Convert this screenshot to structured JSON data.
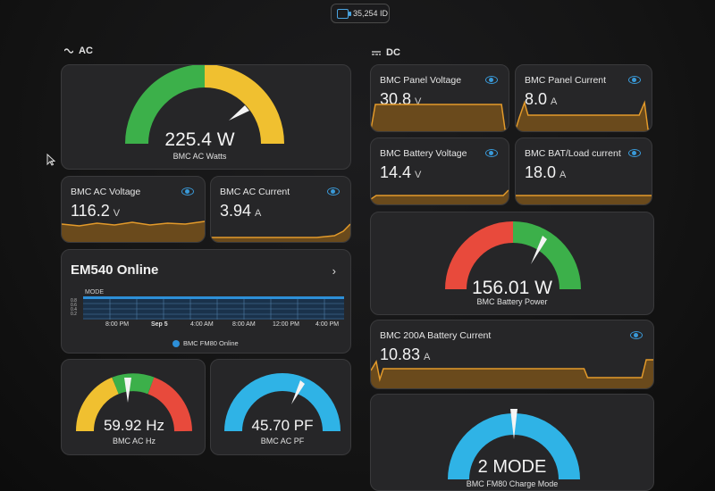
{
  "top_badge": {
    "icon": "battery-icon",
    "text": "35,254 ID"
  },
  "sections": {
    "ac": {
      "title": "AC",
      "icon": "sine-wave-icon"
    },
    "dc": {
      "title": "DC",
      "icon": "dc-icon"
    }
  },
  "colors": {
    "green": "#3cb04a",
    "yellow": "#f0c030",
    "red": "#e84a3c",
    "cyan": "#2fb3e6",
    "orange": "#e39a2a",
    "eye": "#3a9ad9"
  },
  "gauges": {
    "ac_watts": {
      "value": "225.4 W",
      "label": "BMC AC Watts",
      "needle_fraction": 0.78
    },
    "ac_hz": {
      "value": "59.92 Hz",
      "label": "BMC AC Hz",
      "needle_fraction": 0.48
    },
    "ac_pf": {
      "value": "45.70 PF",
      "label": "BMC AC PF",
      "needle_fraction": 0.62
    },
    "battery_power": {
      "value": "156.01 W",
      "label": "BMC Battery Power",
      "needle_fraction": 0.68
    },
    "charge_mode": {
      "value": "2 MODE",
      "label": "BMC FM80 Charge Mode",
      "needle_fraction": 0.5
    }
  },
  "sensors": {
    "ac_voltage": {
      "name": "BMC AC Voltage",
      "value": "116.2",
      "unit": "V"
    },
    "ac_current": {
      "name": "BMC AC Current",
      "value": "3.94",
      "unit": "A"
    },
    "panel_voltage": {
      "name": "BMC Panel Voltage",
      "value": "30.8",
      "unit": "V"
    },
    "panel_current": {
      "name": "BMC Panel Current",
      "value": "8.0",
      "unit": "A"
    },
    "battery_voltage": {
      "name": "BMC Battery Voltage",
      "value": "14.4",
      "unit": "V"
    },
    "bat_load_current": {
      "name": "BMC BAT/Load current",
      "value": "18.0",
      "unit": "A"
    },
    "battery_current_200a": {
      "name": "BMC 200A Battery Current",
      "value": "10.83",
      "unit": "A"
    }
  },
  "em540": {
    "title": "EM540 Online",
    "y_label": "MODE",
    "y_ticks": [
      "0.8",
      "0.6",
      "0.4",
      "0.2"
    ],
    "x_ticks": [
      "8:00 PM",
      "Sep 5",
      "4:00 AM",
      "8:00 AM",
      "12:00 PM",
      "4:00 PM"
    ],
    "legend": "BMC FM80 Online"
  }
}
